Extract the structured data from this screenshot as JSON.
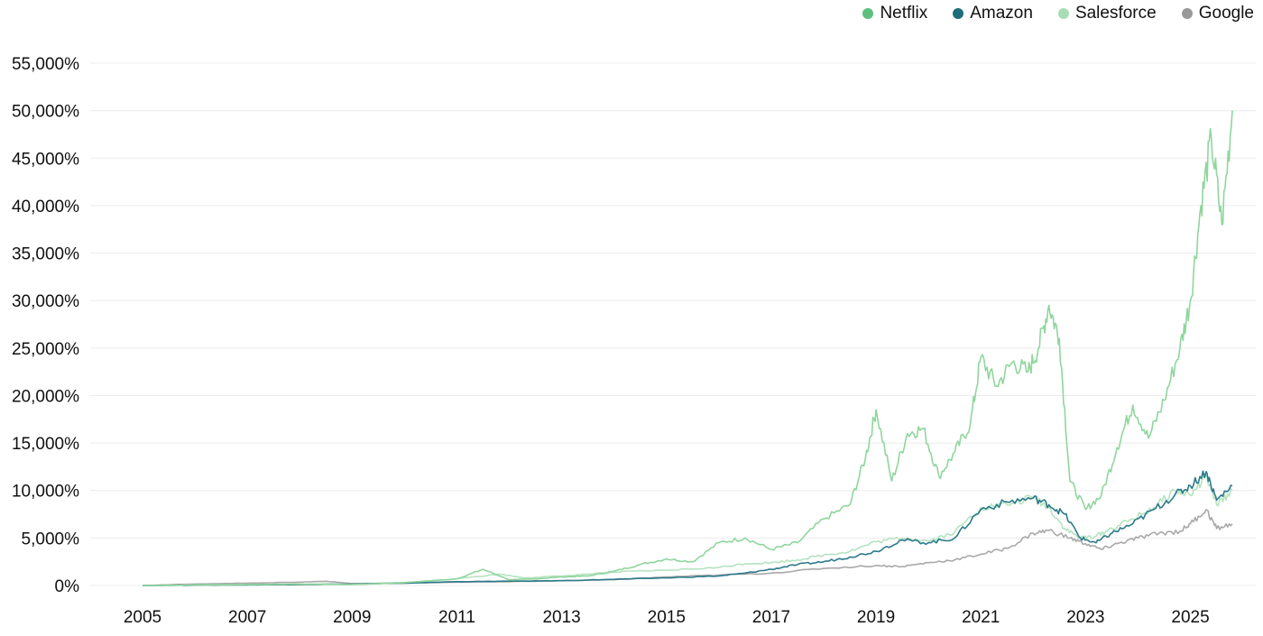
{
  "chart_data": {
    "type": "line",
    "title": "",
    "xlabel": "",
    "ylabel": "",
    "xlim": [
      2005,
      2025.9
    ],
    "ylim": [
      0,
      55000
    ],
    "x_ticks": [
      "2005",
      "2007",
      "2009",
      "2011",
      "2013",
      "2015",
      "2017",
      "2019",
      "2021",
      "2023",
      "2025"
    ],
    "y_ticks": [
      "0%",
      "5,000%",
      "10,000%",
      "15,000%",
      "20,000%",
      "25,000%",
      "30,000%",
      "35,000%",
      "40,000%",
      "45,000%",
      "50,000%",
      "55,000%"
    ],
    "y_tick_values": [
      0,
      5000,
      10000,
      15000,
      20000,
      25000,
      30000,
      35000,
      40000,
      45000,
      50000,
      55000
    ],
    "grid": "horizontal",
    "legend_position": "top-right",
    "series": [
      {
        "name": "Netflix",
        "color": "#5cbf7f",
        "line_color": "#8fd69d",
        "x": [
          2005,
          2006,
          2007,
          2008,
          2009,
          2010,
          2011,
          2011.5,
          2012,
          2012.5,
          2013,
          2013.5,
          2014,
          2014.5,
          2015,
          2015.5,
          2016,
          2016.5,
          2017,
          2017.5,
          2018,
          2018.5,
          2018.8,
          2019,
          2019.3,
          2019.6,
          2019.9,
          2020.2,
          2020.5,
          2020.8,
          2021,
          2021.3,
          2021.6,
          2021.9,
          2022.1,
          2022.3,
          2022.5,
          2022.7,
          2023,
          2023.3,
          2023.6,
          2023.9,
          2024.2,
          2024.5,
          2024.8,
          2025,
          2025.2,
          2025.4,
          2025.6,
          2025.8
        ],
        "y": [
          0,
          50,
          100,
          150,
          100,
          300,
          700,
          1700,
          600,
          700,
          900,
          1000,
          1500,
          2200,
          2800,
          2500,
          4500,
          5000,
          3800,
          4500,
          7000,
          8500,
          13500,
          18500,
          11000,
          16000,
          16500,
          11500,
          14000,
          17000,
          24000,
          21000,
          23500,
          22500,
          25000,
          29500,
          26000,
          11000,
          8000,
          9500,
          14500,
          19000,
          15500,
          19500,
          25000,
          30000,
          40000,
          47000,
          38000,
          50000
        ]
      },
      {
        "name": "Amazon",
        "color": "#1b6e7a",
        "line_color": "#2b7a8a",
        "x": [
          2005,
          2006,
          2007,
          2008,
          2009,
          2010,
          2011,
          2012,
          2013,
          2014,
          2015,
          2016,
          2016.5,
          2017,
          2017.5,
          2018,
          2018.5,
          2019,
          2019.5,
          2020,
          2020.5,
          2021,
          2021.5,
          2022,
          2022.3,
          2022.6,
          2022.9,
          2023.2,
          2023.5,
          2023.9,
          2024.3,
          2024.7,
          2025,
          2025.3,
          2025.5,
          2025.8
        ],
        "y": [
          0,
          40,
          60,
          100,
          150,
          250,
          400,
          450,
          500,
          650,
          800,
          1000,
          1300,
          1700,
          2200,
          2500,
          3000,
          3600,
          4800,
          4500,
          5000,
          8000,
          8800,
          9200,
          8500,
          7500,
          5000,
          4500,
          5500,
          6500,
          8000,
          9500,
          10500,
          12000,
          9000,
          10500
        ]
      },
      {
        "name": "Salesforce",
        "color": "#a8dcb5",
        "line_color": "#b5e3c0",
        "x": [
          2005,
          2006,
          2007,
          2008,
          2009,
          2010,
          2011,
          2011.8,
          2012.3,
          2013,
          2014,
          2015,
          2016,
          2016.5,
          2017,
          2017.5,
          2018,
          2018.5,
          2019,
          2019.5,
          2020,
          2020.5,
          2021,
          2021.5,
          2022,
          2022.3,
          2022.6,
          2022.9,
          2023.2,
          2023.5,
          2023.9,
          2024.3,
          2024.7,
          2025,
          2025.3,
          2025.5,
          2025.8
        ],
        "y": [
          0,
          30,
          80,
          120,
          120,
          300,
          700,
          1200,
          800,
          1000,
          1400,
          1600,
          1900,
          2300,
          2400,
          2700,
          3200,
          3600,
          4600,
          5000,
          4700,
          5600,
          8200,
          8500,
          9300,
          8200,
          6000,
          5000,
          5200,
          6000,
          7000,
          8200,
          10000,
          9500,
          11500,
          8500,
          10000
        ]
      },
      {
        "name": "Google",
        "color": "#999999",
        "line_color": "#a9a9a9",
        "x": [
          2005,
          2006,
          2007,
          2008,
          2008.5,
          2009,
          2010,
          2011,
          2012,
          2013,
          2014,
          2015,
          2016,
          2017,
          2018,
          2019,
          2019.5,
          2020,
          2020.5,
          2021,
          2021.5,
          2022,
          2022.3,
          2022.7,
          2023,
          2023.3,
          2023.6,
          2024,
          2024.4,
          2024.8,
          2025,
          2025.3,
          2025.5,
          2025.8
        ],
        "y": [
          0,
          150,
          250,
          350,
          450,
          200,
          250,
          350,
          400,
          500,
          600,
          900,
          1100,
          1300,
          1800,
          2100,
          2000,
          2400,
          2700,
          3300,
          3900,
          5500,
          5800,
          5000,
          4400,
          3800,
          4400,
          5000,
          5500,
          5700,
          6500,
          8000,
          6000,
          6500
        ]
      }
    ]
  }
}
